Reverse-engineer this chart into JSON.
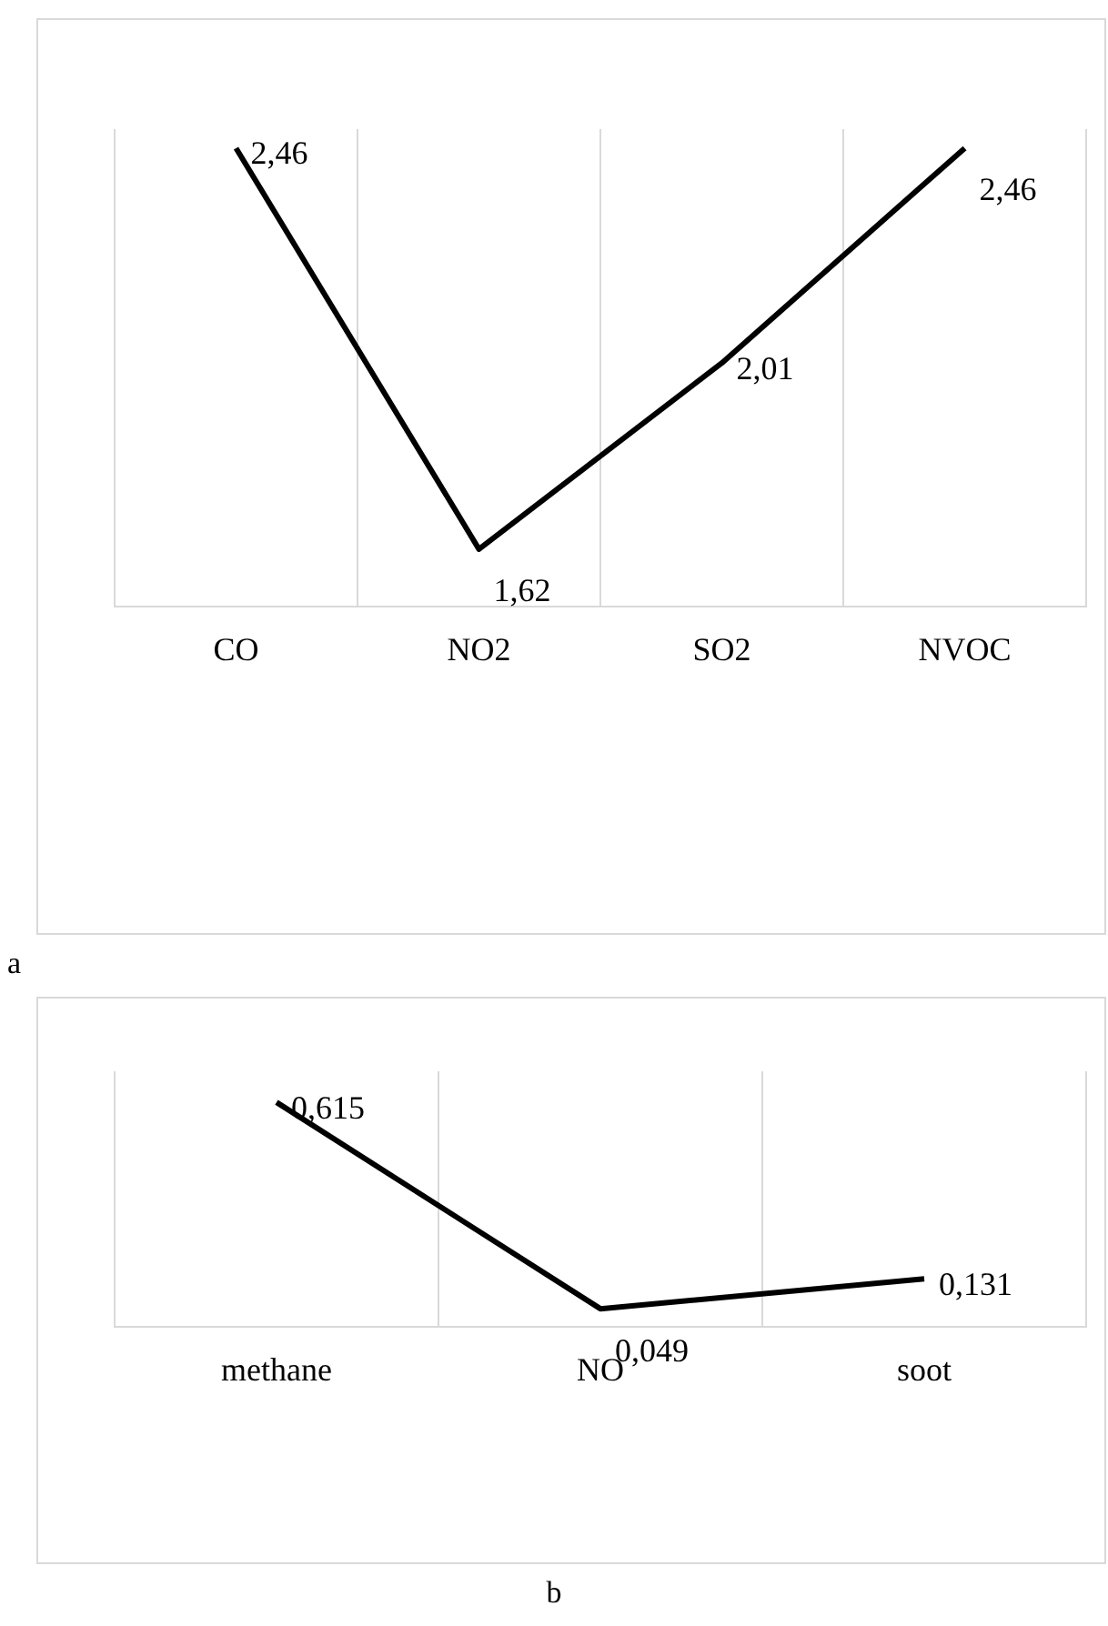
{
  "chart_data": [
    {
      "type": "line",
      "categories": [
        "CO",
        "NO2",
        "SO2",
        "NVOC"
      ],
      "series": [
        {
          "color": "#000000",
          "values": [
            2.46,
            1.62,
            2.01,
            2.46
          ],
          "value_labels": [
            "2,46",
            "1,62",
            "2,01",
            "2,46"
          ]
        }
      ],
      "grid": "x",
      "legend": false,
      "marker": "none",
      "line_style": "solid",
      "annotations": [
        "a"
      ]
    },
    {
      "type": "line",
      "categories": [
        "methane",
        "NO",
        "soot"
      ],
      "series": [
        {
          "color": "#000000",
          "values": [
            0.615,
            0.049,
            0.131
          ],
          "value_labels": [
            "0,615",
            "0,049",
            "0,131"
          ]
        }
      ],
      "grid": "x",
      "legend": false,
      "marker": "none",
      "line_style": "solid",
      "annotations": [
        "b"
      ]
    }
  ]
}
